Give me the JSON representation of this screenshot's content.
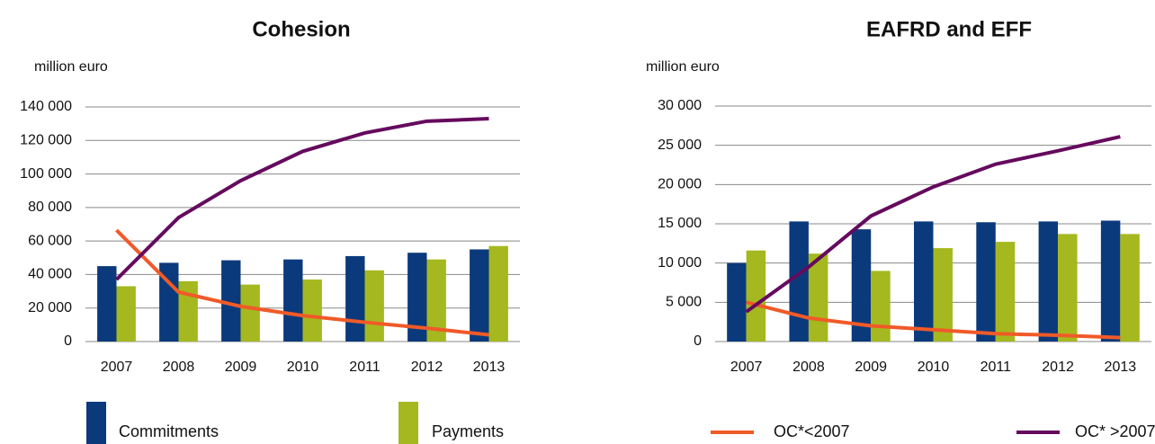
{
  "chart_data": [
    {
      "type": "bar_line",
      "title": "Cohesion",
      "y_axis_label": "million euro",
      "categories": [
        "2007",
        "2008",
        "2009",
        "2010",
        "2011",
        "2012",
        "2013"
      ],
      "ylim": [
        0,
        140000
      ],
      "yticks": [
        {
          "value": 0,
          "label": "0"
        },
        {
          "value": 20000,
          "label": "20 000"
        },
        {
          "value": 40000,
          "label": "40 000"
        },
        {
          "value": 60000,
          "label": "60 000"
        },
        {
          "value": 80000,
          "label": "80 000"
        },
        {
          "value": 100000,
          "label": "100 000"
        },
        {
          "value": 120000,
          "label": "120 000"
        },
        {
          "value": 140000,
          "label": "140 000"
        }
      ],
      "grid": true,
      "series": [
        {
          "name": "Commitments",
          "kind": "bar",
          "color": "#0b3a7c",
          "values": [
            45000,
            47000,
            48500,
            49000,
            51000,
            53000,
            55000
          ]
        },
        {
          "name": "Payments",
          "kind": "bar",
          "color": "#a5b81f",
          "values": [
            33000,
            36000,
            34000,
            37000,
            42500,
            49000,
            57000
          ]
        },
        {
          "name": "OC*<2007",
          "kind": "line",
          "color": "#f05a28",
          "values": [
            66500,
            29500,
            21000,
            15500,
            11500,
            8000,
            4000
          ]
        },
        {
          "name": "OC* >2007",
          "kind": "line",
          "color": "#650a5e",
          "values": [
            37000,
            74000,
            96000,
            113500,
            124500,
            131500,
            133000
          ]
        }
      ]
    },
    {
      "type": "bar_line",
      "title": "EAFRD and EFF",
      "y_axis_label": "million euro",
      "categories": [
        "2007",
        "2008",
        "2009",
        "2010",
        "2011",
        "2012",
        "2013"
      ],
      "ylim": [
        0,
        30000
      ],
      "yticks": [
        {
          "value": 0,
          "label": "0"
        },
        {
          "value": 5000,
          "label": "5 000"
        },
        {
          "value": 10000,
          "label": "10 000"
        },
        {
          "value": 15000,
          "label": "15 000"
        },
        {
          "value": 20000,
          "label": "20 000"
        },
        {
          "value": 25000,
          "label": "25 000"
        },
        {
          "value": 30000,
          "label": "30 000"
        }
      ],
      "grid": true,
      "series": [
        {
          "name": "Commitments",
          "kind": "bar",
          "color": "#0b3a7c",
          "values": [
            10000,
            15300,
            14300,
            15300,
            15200,
            15300,
            15400
          ]
        },
        {
          "name": "Payments",
          "kind": "bar",
          "color": "#a5b81f",
          "values": [
            11600,
            11200,
            9000,
            11900,
            12700,
            13700,
            13700
          ]
        },
        {
          "name": "OC*<2007",
          "kind": "line",
          "color": "#f05a28",
          "values": [
            5000,
            3000,
            2000,
            1500,
            1000,
            800,
            500
          ]
        },
        {
          "name": "OC* >2007",
          "kind": "line",
          "color": "#650a5e",
          "values": [
            3800,
            9500,
            16000,
            19700,
            22600,
            24300,
            26100
          ]
        }
      ]
    }
  ]
}
